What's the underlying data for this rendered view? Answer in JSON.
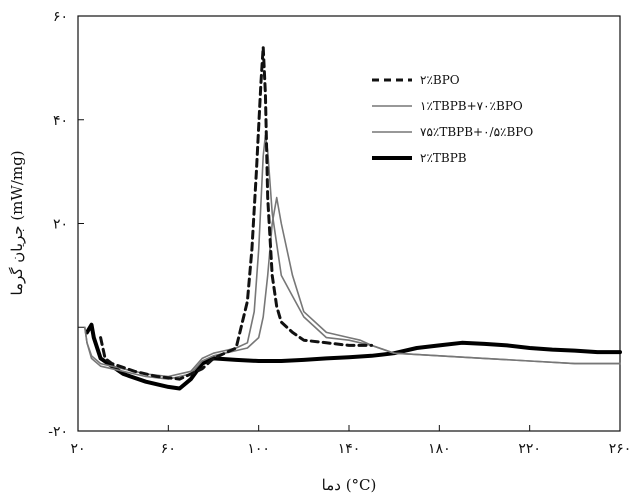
{
  "chart_data": {
    "type": "line",
    "title": "",
    "xlabel": "دما (°C)",
    "ylabel": "جریان گرما (mW/mg)",
    "xlim": [
      20,
      260
    ],
    "ylim": [
      -20,
      60
    ],
    "xticks": [
      20,
      60,
      100,
      140,
      180,
      220,
      260
    ],
    "yticks": [
      -20,
      0,
      20,
      40,
      60
    ],
    "xtick_labels": [
      "۲۰",
      "۶۰",
      "۱۰۰",
      "۱۴۰",
      "۱۸۰",
      "۲۲۰",
      "۲۶۰"
    ],
    "ytick_labels": [
      "-۲۰",
      "",
      "۲۰",
      "۴۰",
      "۶۰"
    ],
    "grid": false,
    "legend_position": "top-right",
    "series": [
      {
        "name": "۲٪BPO",
        "color": "#111111",
        "style": "dashed",
        "width": 3,
        "x": [
          30,
          32,
          35,
          45,
          55,
          65,
          75,
          80,
          85,
          90,
          95,
          97,
          99,
          101,
          102,
          103,
          104,
          106,
          108,
          110,
          115,
          120,
          130,
          140,
          150
        ],
        "y": [
          -2,
          -6,
          -7,
          -8.5,
          -9.5,
          -10,
          -8,
          -6,
          -5,
          -4,
          5,
          15,
          30,
          47,
          54,
          45,
          25,
          10,
          4,
          1,
          -1,
          -2.5,
          -3,
          -3.5,
          -3.5
        ]
      },
      {
        "name": "۱٪TBPB+۷۰٪BPO",
        "color": "#777777",
        "style": "solid",
        "width": 1.6,
        "x": [
          23,
          24,
          26,
          30,
          40,
          50,
          60,
          70,
          75,
          80,
          85,
          90,
          95,
          98,
          100,
          102,
          103,
          104,
          106,
          110,
          115,
          120,
          130,
          140,
          145,
          150,
          160,
          180,
          200,
          220,
          240,
          260
        ],
        "y": [
          0,
          -3,
          -5.5,
          -7,
          -8,
          -9,
          -9.5,
          -8.5,
          -6,
          -5,
          -4.5,
          -4,
          -3,
          3,
          15,
          33,
          37,
          34,
          22,
          10,
          6,
          2,
          -2,
          -2.5,
          -3,
          -3.5,
          -5,
          -5.5,
          -6,
          -6.5,
          -7,
          -7
        ]
      },
      {
        "name": "۷۵٪TBPB+۰/۵٪BPO",
        "color": "#777777",
        "style": "solid",
        "width": 1.6,
        "x": [
          23,
          24,
          26,
          30,
          40,
          50,
          60,
          70,
          75,
          80,
          85,
          90,
          95,
          100,
          102,
          104,
          106,
          108,
          110,
          115,
          120,
          130,
          140,
          145,
          150,
          160,
          180,
          200,
          220,
          240,
          260
        ],
        "y": [
          0,
          -3,
          -6,
          -7.5,
          -8.5,
          -9.5,
          -10,
          -9,
          -6.5,
          -5.5,
          -5,
          -4.5,
          -4,
          -2,
          2,
          10,
          20,
          25,
          20,
          10,
          3,
          -1,
          -2,
          -2.5,
          -3.5,
          -5,
          -5.5,
          -6,
          -6.5,
          -7,
          -7
        ]
      },
      {
        "name": "۲٪TBPB",
        "color": "#000000",
        "style": "solid",
        "width": 4,
        "x": [
          24,
          26,
          27,
          30,
          40,
          50,
          60,
          65,
          70,
          75,
          80,
          90,
          100,
          110,
          120,
          130,
          140,
          150,
          160,
          170,
          180,
          190,
          200,
          210,
          220,
          230,
          240,
          250,
          260
        ],
        "y": [
          -1,
          0.5,
          -2,
          -6,
          -9,
          -10.5,
          -11.5,
          -11.8,
          -10,
          -7,
          -6,
          -6.3,
          -6.5,
          -6.5,
          -6.3,
          -6,
          -5.8,
          -5.5,
          -5,
          -4,
          -3.5,
          -3,
          -3.2,
          -3.5,
          -4,
          -4.3,
          -4.5,
          -4.8,
          -4.8
        ]
      }
    ]
  }
}
